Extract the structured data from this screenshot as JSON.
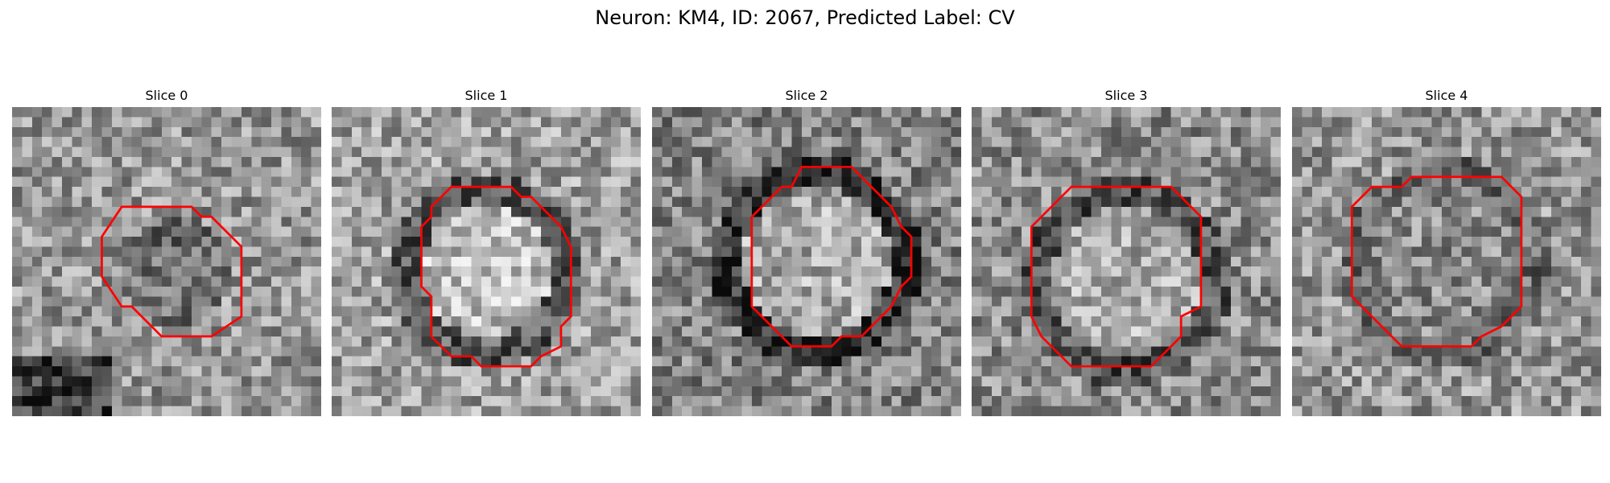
{
  "figure": {
    "title": "Neuron: KM4, ID: 2067, Predicted Label: CV",
    "contour_color": "#ff0000"
  },
  "slices": [
    {
      "title": "Slice 0"
    },
    {
      "title": "Slice 1"
    },
    {
      "title": "Slice 2"
    },
    {
      "title": "Slice 3"
    },
    {
      "title": "Slice 4"
    }
  ]
}
